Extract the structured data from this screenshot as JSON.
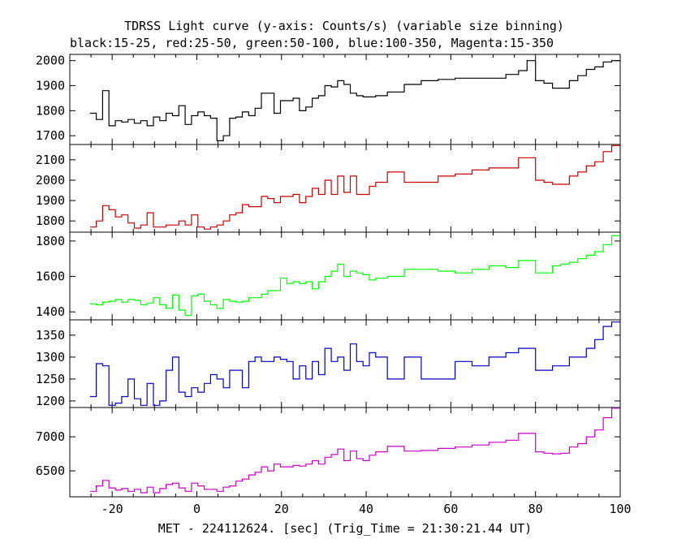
{
  "title": "TDRSS Light curve (y-axis: Counts/s) (variable size binning)",
  "subtitle": "black:15-25, red:25-50, green:50-100, blue:100-350, Magenta:15-350",
  "chart_data": {
    "type": "line",
    "title": "TDRSS Light curve (y-axis: Counts/s) (variable size binning)",
    "subtitle": "black:15-25, red:25-50, green:50-100, blue:100-350, Magenta:15-350",
    "xlabel": "MET - 224112624. [sec] (Trig_Time = 21:30:21.44 UT)",
    "xlim": [
      -30,
      100
    ],
    "x_ticks": [
      -20,
      0,
      20,
      40,
      60,
      80,
      100
    ],
    "grid": false,
    "step": true,
    "panels": [
      {
        "name": "15-25",
        "color": "#000000",
        "ylim": [
          1665,
          2025
        ],
        "y_ticks": [
          1700,
          1800,
          1900,
          2000
        ],
        "x": [
          -24.5,
          -23,
          -21.5,
          -20,
          -18.5,
          -17,
          -15.5,
          -14,
          -12.5,
          -11,
          -9.5,
          -8,
          -6.5,
          -5,
          -3.5,
          -2,
          -0.5,
          1,
          2.5,
          4,
          5.5,
          7,
          8.5,
          10,
          11.5,
          13,
          14.5,
          16,
          17.5,
          19,
          20.5,
          22,
          23.5,
          25,
          26.5,
          28,
          29.5,
          31,
          32.5,
          34,
          35.5,
          37,
          38.5,
          40,
          41.5,
          43,
          47,
          51,
          55,
          59,
          63,
          67,
          71,
          75,
          77,
          79,
          81,
          83,
          85,
          87,
          89,
          91,
          93,
          95,
          97,
          99
        ],
        "y": [
          1790,
          1765,
          1880,
          1740,
          1760,
          1755,
          1765,
          1750,
          1760,
          1740,
          1775,
          1760,
          1790,
          1780,
          1820,
          1745,
          1780,
          1795,
          1780,
          1770,
          1680,
          1700,
          1770,
          1775,
          1795,
          1780,
          1810,
          1870,
          1870,
          1790,
          1840,
          1840,
          1850,
          1800,
          1815,
          1850,
          1860,
          1900,
          1895,
          1920,
          1905,
          1870,
          1860,
          1855,
          1855,
          1860,
          1875,
          1905,
          1920,
          1925,
          1930,
          1930,
          1930,
          1945,
          1960,
          2000,
          1920,
          1910,
          1890,
          1890,
          1920,
          1940,
          1965,
          1975,
          1995,
          2000
        ]
      },
      {
        "name": "25-50",
        "color": "#c80000",
        "ylim": [
          1745,
          2175
        ],
        "y_ticks": [
          1800,
          1900,
          2000,
          2100
        ],
        "x": [
          -24.5,
          -23,
          -21.5,
          -20,
          -18.5,
          -17,
          -15.5,
          -14,
          -12.5,
          -11,
          -9.5,
          -8,
          -6.5,
          -5,
          -3.5,
          -2,
          -0.5,
          1,
          2.5,
          4,
          5.5,
          7,
          8.5,
          10,
          11.5,
          13,
          14.5,
          16,
          17.5,
          19,
          20.5,
          22,
          23.5,
          25,
          26.5,
          28,
          29.5,
          31,
          32.5,
          34,
          35.5,
          37,
          38.5,
          40,
          41.5,
          43,
          47,
          51,
          55,
          59,
          63,
          67,
          71,
          75,
          77,
          79,
          81,
          83,
          85,
          87,
          89,
          91,
          93,
          95,
          97,
          99
        ],
        "y": [
          1770,
          1800,
          1875,
          1855,
          1820,
          1830,
          1790,
          1765,
          1780,
          1840,
          1770,
          1770,
          1780,
          1780,
          1800,
          1780,
          1830,
          1770,
          1760,
          1770,
          1780,
          1800,
          1830,
          1840,
          1880,
          1870,
          1870,
          1920,
          1910,
          1890,
          1920,
          1920,
          1930,
          1890,
          1920,
          1960,
          1930,
          2000,
          1930,
          2020,
          1940,
          2020,
          1930,
          1930,
          1970,
          1990,
          2040,
          1990,
          1990,
          2020,
          2030,
          2050,
          2060,
          2060,
          2110,
          2110,
          2000,
          1990,
          1980,
          1980,
          2020,
          2040,
          2070,
          2090,
          2140,
          2170
        ]
      },
      {
        "name": "50-100",
        "color": "#00ff00",
        "ylim": [
          1355,
          1850
        ],
        "y_ticks": [
          1400,
          1600,
          1800
        ],
        "x": [
          -24.5,
          -23,
          -21.5,
          -20,
          -18.5,
          -17,
          -15.5,
          -14,
          -12.5,
          -11,
          -9.5,
          -8,
          -6.5,
          -5,
          -3.5,
          -2,
          -0.5,
          1,
          2.5,
          4,
          5.5,
          7,
          8.5,
          10,
          11.5,
          13,
          14.5,
          16,
          17.5,
          19,
          20.5,
          22,
          23.5,
          25,
          26.5,
          28,
          29.5,
          31,
          32.5,
          34,
          35.5,
          37,
          38.5,
          40,
          41.5,
          43,
          47,
          51,
          55,
          59,
          63,
          67,
          71,
          75,
          77,
          79,
          81,
          83,
          85,
          87,
          89,
          91,
          93,
          95,
          97,
          99
        ],
        "y": [
          1445,
          1440,
          1455,
          1460,
          1470,
          1455,
          1470,
          1465,
          1440,
          1450,
          1480,
          1440,
          1420,
          1495,
          1410,
          1380,
          1490,
          1500,
          1460,
          1440,
          1420,
          1470,
          1460,
          1455,
          1460,
          1480,
          1480,
          1500,
          1520,
          1520,
          1590,
          1560,
          1570,
          1560,
          1570,
          1530,
          1570,
          1600,
          1630,
          1670,
          1600,
          1630,
          1620,
          1610,
          1580,
          1590,
          1600,
          1640,
          1640,
          1630,
          1620,
          1640,
          1660,
          1650,
          1690,
          1690,
          1620,
          1620,
          1660,
          1670,
          1680,
          1700,
          1720,
          1740,
          1780,
          1830
        ]
      },
      {
        "name": "100-350",
        "color": "#0000c8",
        "ylim": [
          1185,
          1385
        ],
        "y_ticks": [
          1200,
          1250,
          1300,
          1350
        ],
        "x": [
          -24.5,
          -23,
          -21.5,
          -20,
          -18.5,
          -17,
          -15.5,
          -14,
          -12.5,
          -11,
          -9.5,
          -8,
          -6.5,
          -5,
          -3.5,
          -2,
          -0.5,
          1,
          2.5,
          4,
          5.5,
          7,
          8.5,
          10,
          11.5,
          13,
          14.5,
          16,
          17.5,
          19,
          20.5,
          22,
          23.5,
          25,
          26.5,
          28,
          29.5,
          31,
          32.5,
          34,
          35.5,
          37,
          38.5,
          40,
          41.5,
          43,
          47,
          51,
          55,
          59,
          63,
          67,
          71,
          75,
          77,
          79,
          81,
          83,
          85,
          87,
          89,
          91,
          93,
          95,
          97,
          99
        ],
        "y": [
          1210,
          1285,
          1280,
          1190,
          1195,
          1210,
          1250,
          1205,
          1190,
          1240,
          1190,
          1200,
          1270,
          1300,
          1220,
          1210,
          1230,
          1220,
          1240,
          1260,
          1250,
          1230,
          1270,
          1270,
          1230,
          1290,
          1300,
          1290,
          1290,
          1300,
          1295,
          1290,
          1250,
          1280,
          1250,
          1290,
          1260,
          1320,
          1290,
          1300,
          1270,
          1330,
          1290,
          1280,
          1310,
          1300,
          1250,
          1300,
          1250,
          1250,
          1290,
          1280,
          1300,
          1310,
          1320,
          1320,
          1270,
          1270,
          1280,
          1280,
          1300,
          1300,
          1320,
          1340,
          1370,
          1380
        ]
      },
      {
        "name": "15-350",
        "color": "#c800c8",
        "ylim": [
          6120,
          7430
        ],
        "y_ticks": [
          6500,
          7000
        ],
        "x": [
          -24.5,
          -23,
          -21.5,
          -20,
          -18.5,
          -17,
          -15.5,
          -14,
          -12.5,
          -11,
          -9.5,
          -8,
          -6.5,
          -5,
          -3.5,
          -2,
          -0.5,
          1,
          2.5,
          4,
          5.5,
          7,
          8.5,
          10,
          11.5,
          13,
          14.5,
          16,
          17.5,
          19,
          20.5,
          22,
          23.5,
          25,
          26.5,
          28,
          29.5,
          31,
          32.5,
          34,
          35.5,
          37,
          38.5,
          40,
          41.5,
          43,
          47,
          51,
          55,
          59,
          63,
          67,
          71,
          75,
          77,
          79,
          81,
          83,
          85,
          87,
          89,
          91,
          93,
          95,
          97,
          99
        ],
        "y": [
          6200,
          6280,
          6360,
          6250,
          6220,
          6240,
          6200,
          6230,
          6180,
          6260,
          6180,
          6240,
          6300,
          6320,
          6250,
          6200,
          6320,
          6280,
          6230,
          6230,
          6200,
          6260,
          6280,
          6350,
          6380,
          6440,
          6480,
          6560,
          6500,
          6600,
          6560,
          6560,
          6580,
          6570,
          6600,
          6650,
          6600,
          6700,
          6740,
          6820,
          6650,
          6790,
          6680,
          6650,
          6730,
          6780,
          6860,
          6790,
          6800,
          6830,
          6850,
          6880,
          6920,
          6950,
          7050,
          7050,
          6780,
          6760,
          6750,
          6760,
          6850,
          6900,
          7000,
          7100,
          7280,
          7420
        ]
      }
    ]
  }
}
